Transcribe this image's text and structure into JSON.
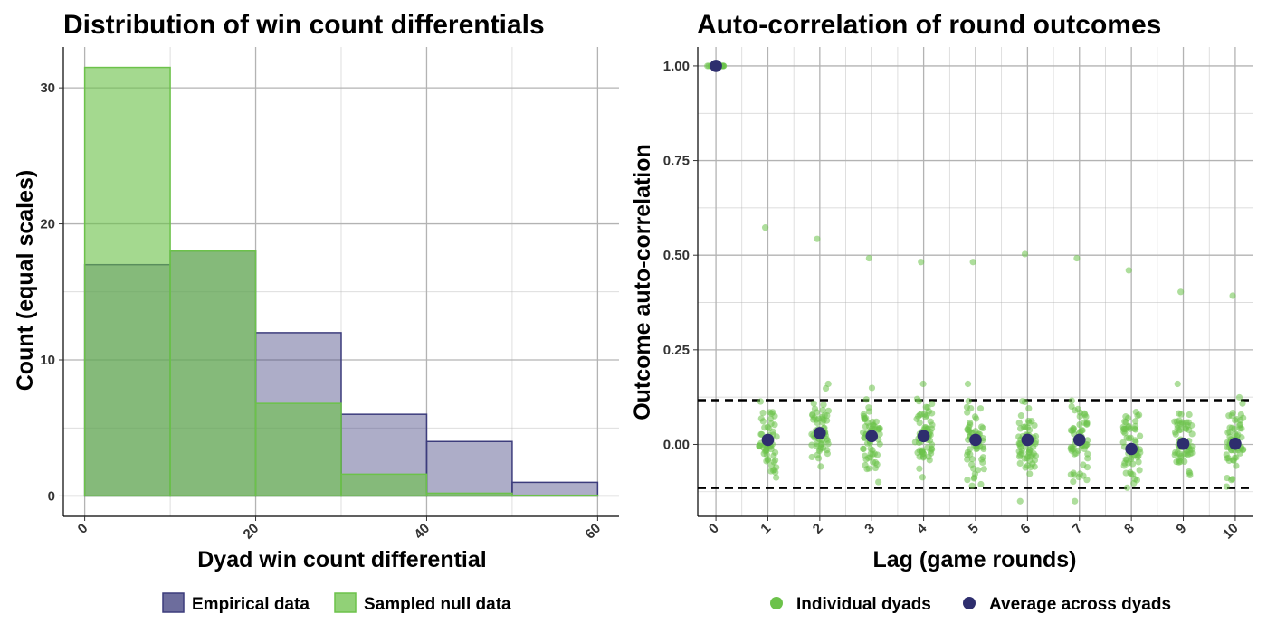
{
  "colors": {
    "empirical": "#3c3c7c",
    "null": "#6cc24a",
    "individual": "#6cc24a",
    "average": "#2e2e6e",
    "grid": "#b3b3b3",
    "axis": "#000000",
    "dashed": "#000000"
  },
  "chart_data": [
    {
      "type": "histogram",
      "title": "Distribution of win count differentials",
      "xlabel": "Dyad win count differential",
      "ylabel": "Count (equal scales)",
      "xlim": [
        -2.5,
        62.5
      ],
      "ylim": [
        -1.5,
        33
      ],
      "xticks": [
        0,
        20,
        40,
        60
      ],
      "yticks": [
        0,
        10,
        20,
        30
      ],
      "bin_edges": [
        0,
        10,
        20,
        30,
        40,
        50,
        60
      ],
      "series": [
        {
          "name": "Empirical data",
          "key": "empirical",
          "values": [
            17,
            18,
            12,
            6,
            4,
            1
          ]
        },
        {
          "name": "Sampled null data",
          "key": "null",
          "values": [
            31.5,
            18,
            6.8,
            1.6,
            0.2,
            0.05
          ]
        }
      ],
      "legend_position": "bottom"
    },
    {
      "type": "scatter",
      "title": "Auto-correlation of round outcomes",
      "xlabel": "Lag (game rounds)",
      "ylabel": "Outcome auto-correlation",
      "xlim": [
        -0.35,
        10.35
      ],
      "ylim": [
        -0.19,
        1.05
      ],
      "xticks": [
        0,
        1,
        2,
        3,
        4,
        5,
        6,
        7,
        8,
        9,
        10
      ],
      "yticks": [
        "0.00",
        "0.25",
        "0.50",
        "0.75",
        "1.00"
      ],
      "threshold_lines": [
        0.117,
        -0.115
      ],
      "outliers": [
        {
          "x": 1,
          "y": 0.573
        },
        {
          "x": 2,
          "y": 0.543
        },
        {
          "x": 3,
          "y": 0.492
        },
        {
          "x": 4,
          "y": 0.482
        },
        {
          "x": 5,
          "y": 0.482
        },
        {
          "x": 6,
          "y": 0.503
        },
        {
          "x": 7,
          "y": 0.492
        },
        {
          "x": 8,
          "y": 0.46
        },
        {
          "x": 9,
          "y": 0.403
        },
        {
          "x": 10,
          "y": 0.393
        }
      ],
      "averages": [
        {
          "x": 0,
          "y": 1.0
        },
        {
          "x": 1,
          "y": 0.012
        },
        {
          "x": 2,
          "y": 0.03
        },
        {
          "x": 3,
          "y": 0.022
        },
        {
          "x": 4,
          "y": 0.022
        },
        {
          "x": 5,
          "y": 0.012
        },
        {
          "x": 6,
          "y": 0.012
        },
        {
          "x": 7,
          "y": 0.012
        },
        {
          "x": 8,
          "y": -0.012
        },
        {
          "x": 9,
          "y": 0.002
        },
        {
          "x": 10,
          "y": 0.002
        }
      ],
      "series": [
        {
          "name": "Individual dyads",
          "key": "individual"
        },
        {
          "name": "Average across dyads",
          "key": "average"
        }
      ],
      "legend_position": "bottom"
    }
  ]
}
